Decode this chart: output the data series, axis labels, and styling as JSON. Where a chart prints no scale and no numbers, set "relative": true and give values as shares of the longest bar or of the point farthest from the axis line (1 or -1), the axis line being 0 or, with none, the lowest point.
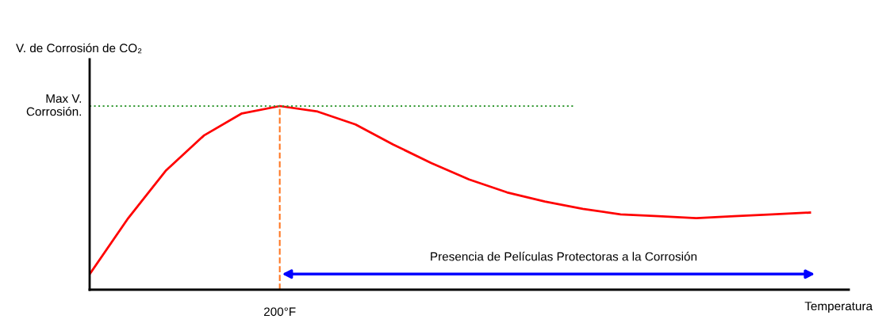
{
  "chart_data": {
    "type": "line",
    "relative": true,
    "ylabel": "V. de Corrosión de CO₂",
    "xlabel": "Temperatura",
    "categories": [
      null,
      null,
      null,
      null,
      null,
      null,
      null,
      null,
      null,
      null,
      null,
      null,
      null,
      null,
      null,
      null,
      null,
      null,
      null,
      null
    ],
    "series": [
      {
        "color": "#ff0000",
        "values": [
          0.09,
          0.39,
          0.65,
          0.84,
          0.96,
          1.0,
          0.97,
          0.9,
          0.79,
          0.69,
          0.6,
          0.53,
          0.48,
          0.44,
          0.41,
          0.4,
          0.39,
          0.4,
          0.41,
          0.42
        ]
      }
    ],
    "ref_lines": [
      {
        "axis": "y",
        "value": 1,
        "label": "Max V. Corrosión.",
        "color": "#339933",
        "line_style": "dotted"
      }
    ],
    "annotations": [
      "Presencia de Películas Protectoras a la Corrosión",
      "200°F"
    ],
    "legend": false,
    "marker": "none",
    "line_style": "solid"
  }
}
